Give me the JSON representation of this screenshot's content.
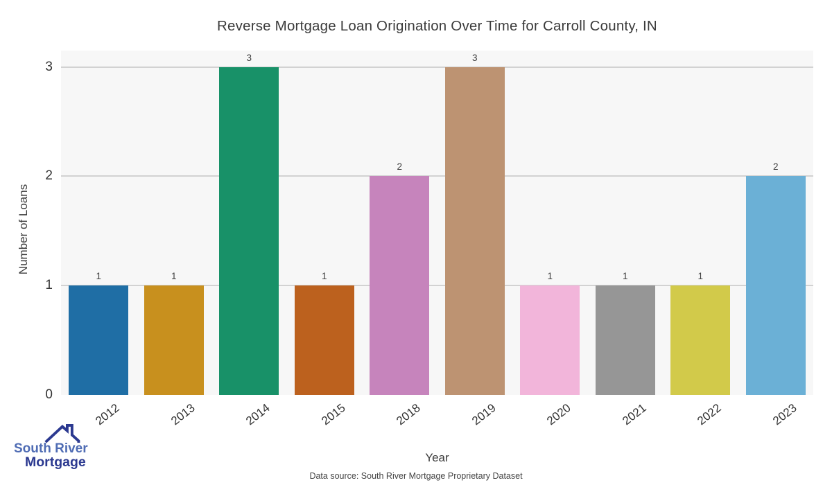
{
  "chart_data": {
    "type": "bar",
    "title": "Reverse Mortgage Loan Origination Over Time for Carroll County, IN",
    "xlabel": "Year",
    "ylabel": "Number of Loans",
    "categories": [
      "2012",
      "2013",
      "2014",
      "2015",
      "2018",
      "2019",
      "2020",
      "2021",
      "2022",
      "2023"
    ],
    "values": [
      1,
      1,
      3,
      1,
      2,
      3,
      1,
      1,
      1,
      2
    ],
    "bar_labels": [
      "1",
      "1",
      "3",
      "1",
      "2",
      "3",
      "1",
      "1",
      "1",
      "2"
    ],
    "bar_colors": [
      "#1f6ea5",
      "#c8901e",
      "#189168",
      "#bc611e",
      "#c684bc",
      "#bd9372",
      "#f2b5da",
      "#969696",
      "#d2ca4a",
      "#6bb0d6"
    ],
    "yticks": [
      0,
      1,
      2,
      3
    ],
    "ylim": [
      0,
      3.15
    ],
    "grid": "horizontal-only",
    "legend": "none",
    "plot_bg": "#f7f7f7",
    "gridline_color": "#d2d2d2"
  },
  "footer": {
    "source_note": "Data source: South River Mortgage Proprietary Dataset"
  },
  "logo": {
    "line1": "South River",
    "line2": "Mortgage",
    "roof_color": "#2b3990"
  }
}
